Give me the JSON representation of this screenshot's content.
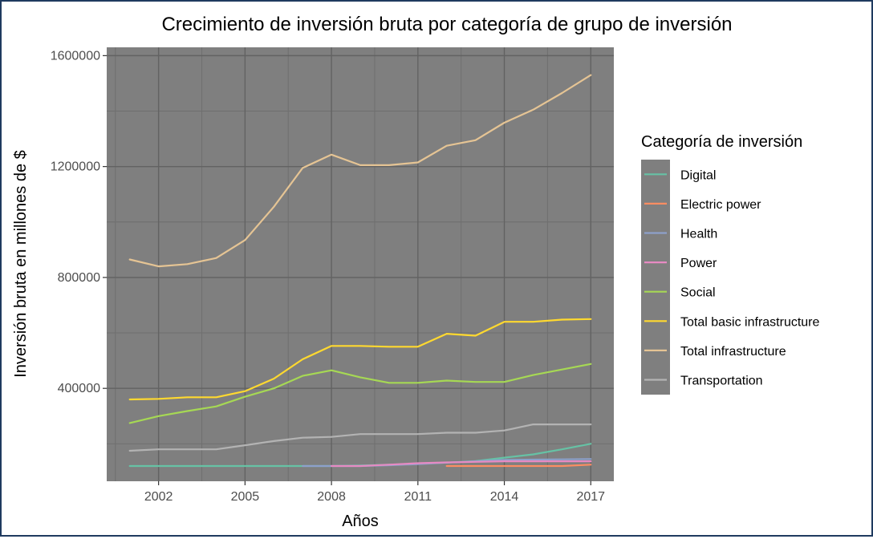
{
  "chart_data": {
    "type": "line",
    "title": "Crecimiento de inversión bruta por categoría de grupo de inversión",
    "xlabel": "Años",
    "ylabel": "Inversión bruta en millones de $",
    "xlim": [
      2000.2,
      2017.8
    ],
    "ylim": [
      65000,
      1630000
    ],
    "xticks": [
      2002,
      2005,
      2008,
      2011,
      2014,
      2017
    ],
    "xtick_labels": [
      "2002",
      "2005",
      "2008",
      "2011",
      "2014",
      "2017"
    ],
    "yticks": [
      400000,
      800000,
      1200000,
      1600000
    ],
    "ytick_labels": [
      "400000",
      "800000",
      "1200000",
      "1600000"
    ],
    "grid": true,
    "legend": {
      "title": "Categoría de inversión",
      "position": "right"
    },
    "x": [
      2001,
      2002,
      2003,
      2004,
      2005,
      2006,
      2007,
      2008,
      2009,
      2010,
      2011,
      2012,
      2013,
      2014,
      2015,
      2016,
      2017
    ],
    "series": [
      {
        "name": "Digital",
        "color": "#66c2a5",
        "values": [
          120000,
          120000,
          120000,
          120000,
          120000,
          120000,
          120000,
          120000,
          122000,
          125000,
          128000,
          132000,
          138000,
          150000,
          162000,
          180000,
          200000
        ]
      },
      {
        "name": "Electric power",
        "color": "#fc8d62",
        "values": [
          null,
          null,
          null,
          null,
          null,
          null,
          null,
          null,
          null,
          null,
          null,
          120000,
          120000,
          120000,
          120000,
          120000,
          125000
        ]
      },
      {
        "name": "Health",
        "color": "#8da0cb",
        "values": [
          null,
          null,
          null,
          null,
          null,
          null,
          120000,
          120000,
          120000,
          123000,
          127000,
          132000,
          137000,
          142000,
          143000,
          144000,
          145000
        ]
      },
      {
        "name": "Power",
        "color": "#e78ac3",
        "values": [
          null,
          null,
          null,
          null,
          null,
          null,
          null,
          120000,
          120000,
          125000,
          130000,
          133000,
          135000,
          137000,
          137000,
          137000,
          137000
        ]
      },
      {
        "name": "Social",
        "color": "#a6d854",
        "values": [
          275000,
          300000,
          318000,
          335000,
          370000,
          400000,
          445000,
          465000,
          440000,
          420000,
          420000,
          428000,
          423000,
          423000,
          448000,
          468000,
          488000
        ]
      },
      {
        "name": "Total basic infrastructure",
        "color": "#ffd92f",
        "values": [
          360000,
          362000,
          368000,
          368000,
          390000,
          435000,
          505000,
          553000,
          553000,
          550000,
          550000,
          597000,
          590000,
          640000,
          640000,
          648000,
          650000
        ]
      },
      {
        "name": "Total infrastructure",
        "color": "#e5c494",
        "values": [
          865000,
          840000,
          848000,
          870000,
          935000,
          1055000,
          1195000,
          1243000,
          1205000,
          1205000,
          1215000,
          1275000,
          1295000,
          1358000,
          1405000,
          1465000,
          1530000
        ]
      },
      {
        "name": "Transportation",
        "color": "#b3b3b3",
        "values": [
          175000,
          180000,
          180000,
          180000,
          195000,
          210000,
          222000,
          225000,
          235000,
          235000,
          235000,
          240000,
          240000,
          248000,
          270000,
          270000,
          270000
        ]
      }
    ]
  }
}
